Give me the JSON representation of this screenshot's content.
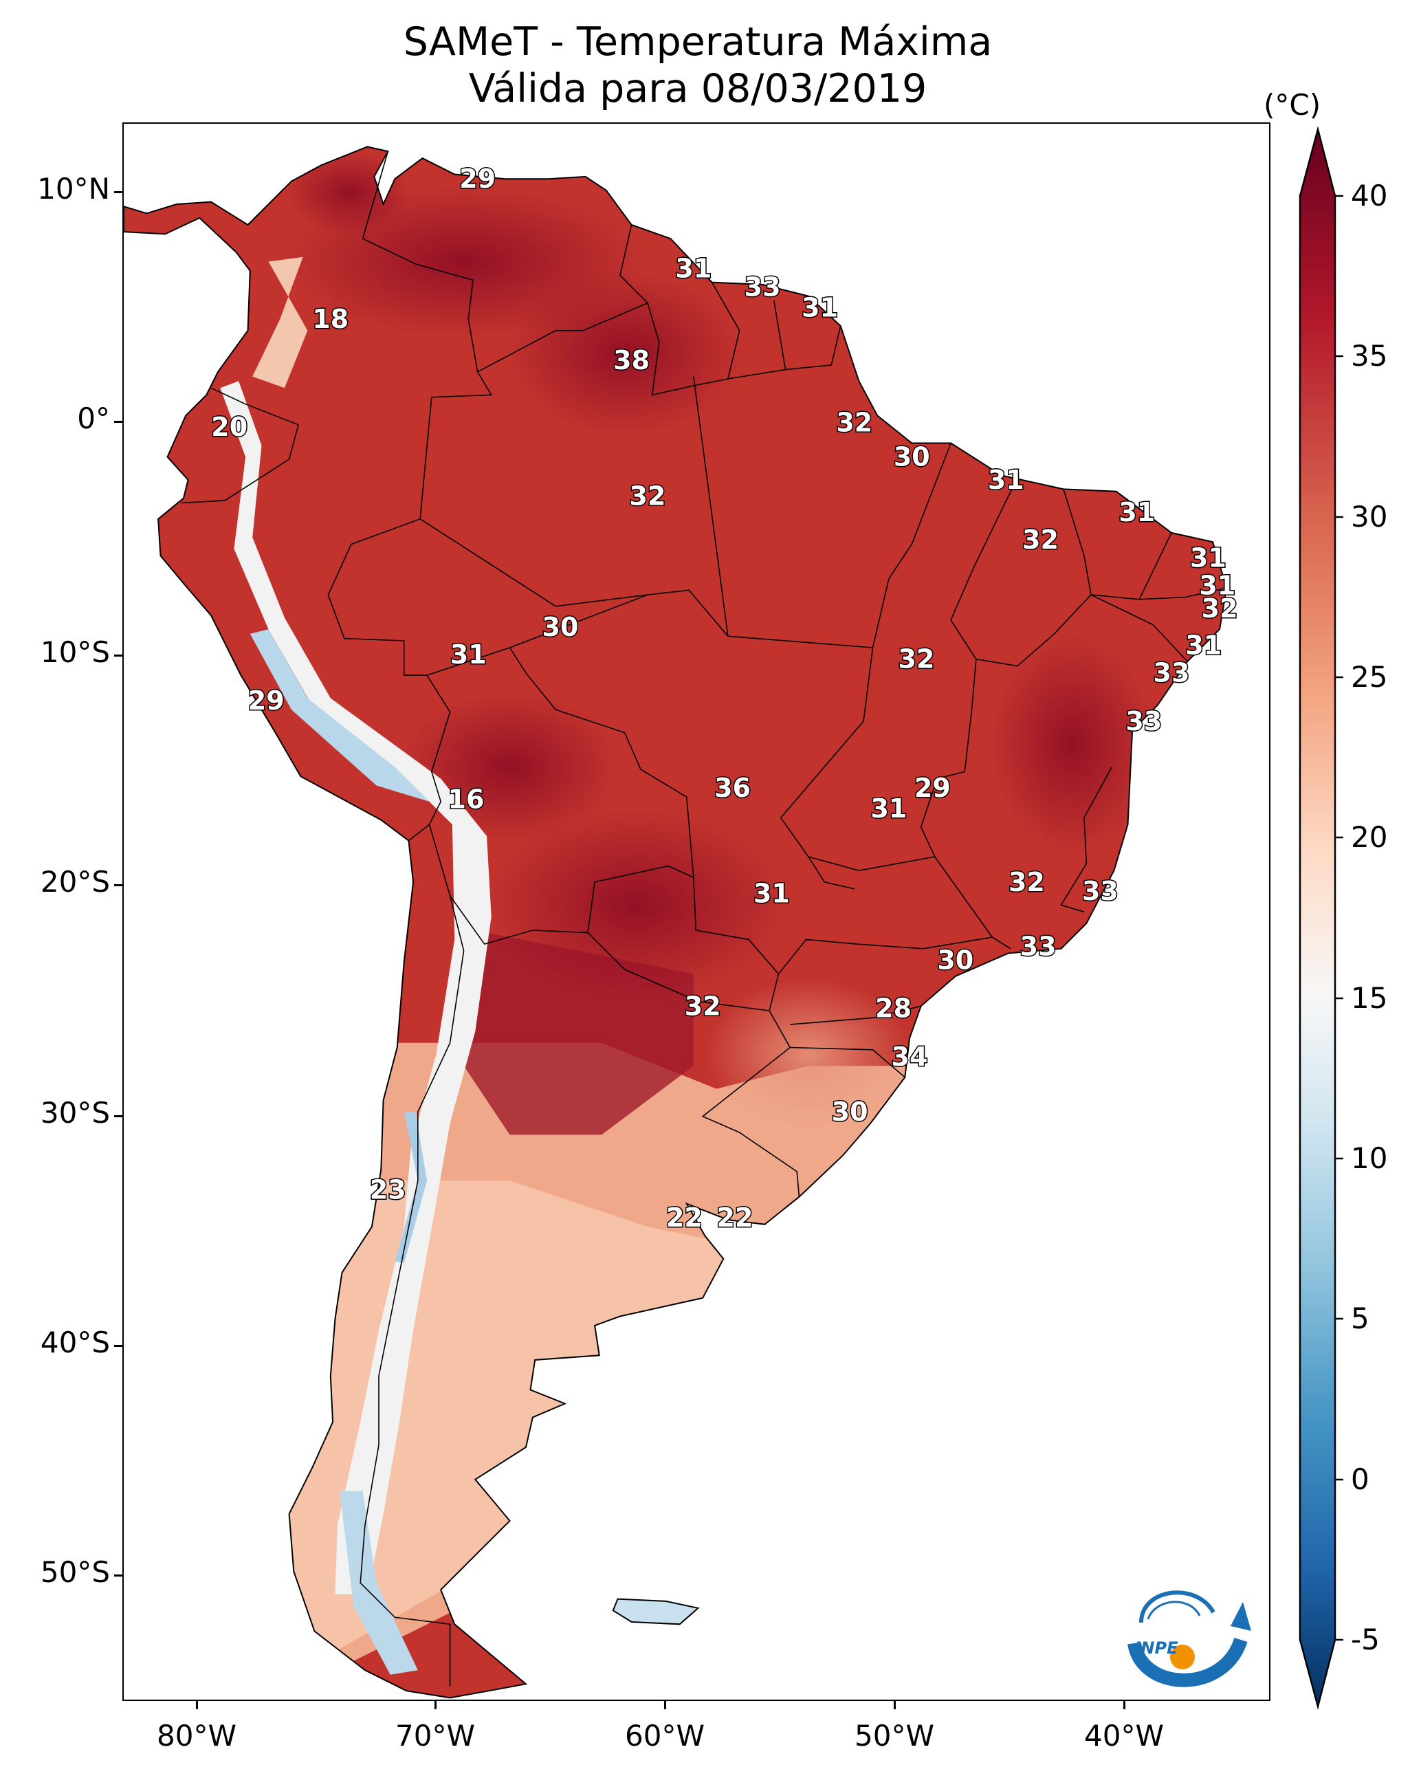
{
  "title": {
    "line1": "SAMeT - Temperatura Máxima",
    "line2": "Válida para 08/03/2019"
  },
  "colorbar": {
    "unit": "(°C)",
    "ticks": [
      "40",
      "35",
      "30",
      "25",
      "20",
      "15",
      "10",
      "5",
      "0",
      "-5"
    ],
    "colors": [
      "#67001f",
      "#b2182b",
      "#d6604d",
      "#f4a582",
      "#fddbc7",
      "#f7f7f7",
      "#d1e5f0",
      "#92c5de",
      "#4393c3",
      "#2166ac",
      "#053061"
    ]
  },
  "axes": {
    "lat_labels": [
      "10°N",
      "0°",
      "10°S",
      "20°S",
      "30°S",
      "40°S",
      "50°S"
    ],
    "lon_labels": [
      "80°W",
      "70°W",
      "60°W",
      "50°W",
      "40°W"
    ]
  },
  "map_labels": [
    {
      "text": "29",
      "lon": -67.4,
      "lat": 10.6
    },
    {
      "text": "31",
      "lon": -58.0,
      "lat": 6.7
    },
    {
      "text": "33",
      "lon": -55.0,
      "lat": 5.9
    },
    {
      "text": "31",
      "lon": -52.5,
      "lat": 5.0
    },
    {
      "text": "18",
      "lon": -73.8,
      "lat": 4.5
    },
    {
      "text": "38",
      "lon": -60.7,
      "lat": 2.7
    },
    {
      "text": "32",
      "lon": -51.0,
      "lat": 0.0
    },
    {
      "text": "20",
      "lon": -78.2,
      "lat": -0.2
    },
    {
      "text": "30",
      "lon": -48.5,
      "lat": -1.5
    },
    {
      "text": "32",
      "lon": -60.0,
      "lat": -3.2
    },
    {
      "text": "31",
      "lon": -44.4,
      "lat": -2.5
    },
    {
      "text": "31",
      "lon": -38.7,
      "lat": -3.9
    },
    {
      "text": "32",
      "lon": -42.9,
      "lat": -5.1
    },
    {
      "text": "31",
      "lon": -35.6,
      "lat": -5.9
    },
    {
      "text": "31",
      "lon": -35.2,
      "lat": -7.1
    },
    {
      "text": "32",
      "lon": -35.1,
      "lat": -8.1
    },
    {
      "text": "30",
      "lon": -63.8,
      "lat": -8.9
    },
    {
      "text": "31",
      "lon": -35.8,
      "lat": -9.7
    },
    {
      "text": "31",
      "lon": -67.8,
      "lat": -10.1
    },
    {
      "text": "32",
      "lon": -48.3,
      "lat": -10.3
    },
    {
      "text": "33",
      "lon": -37.2,
      "lat": -10.9
    },
    {
      "text": "29",
      "lon": -76.6,
      "lat": -12.1
    },
    {
      "text": "33",
      "lon": -38.4,
      "lat": -13.0
    },
    {
      "text": "36",
      "lon": -56.3,
      "lat": -15.9
    },
    {
      "text": "29",
      "lon": -47.6,
      "lat": -15.9
    },
    {
      "text": "16",
      "lon": -67.9,
      "lat": -16.4
    },
    {
      "text": "31",
      "lon": -49.5,
      "lat": -16.8
    },
    {
      "text": "32",
      "lon": -43.5,
      "lat": -20.0
    },
    {
      "text": "33",
      "lon": -40.3,
      "lat": -20.4
    },
    {
      "text": "31",
      "lon": -54.6,
      "lat": -20.5
    },
    {
      "text": "33",
      "lon": -43.0,
      "lat": -22.8
    },
    {
      "text": "30",
      "lon": -46.6,
      "lat": -23.4
    },
    {
      "text": "32",
      "lon": -57.6,
      "lat": -25.4
    },
    {
      "text": "28",
      "lon": -49.3,
      "lat": -25.5
    },
    {
      "text": "34",
      "lon": -48.6,
      "lat": -27.6
    },
    {
      "text": "30",
      "lon": -51.2,
      "lat": -30.0
    },
    {
      "text": "23",
      "lon": -71.3,
      "lat": -33.4
    },
    {
      "text": "22",
      "lon": -58.4,
      "lat": -34.6
    },
    {
      "text": "22",
      "lon": -56.2,
      "lat": -34.6
    }
  ],
  "logo": {
    "text": "INPE"
  }
}
